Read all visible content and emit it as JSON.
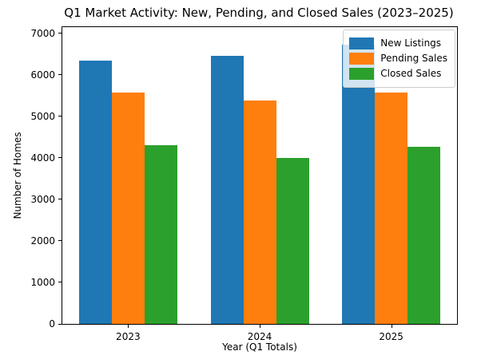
{
  "chart_data": {
    "type": "bar",
    "title": "Q1 Market Activity: New, Pending, and Closed Sales (2023–2025)",
    "xlabel": "Year (Q1 Totals)",
    "ylabel": "Number of Homes",
    "categories": [
      "2023",
      "2024",
      "2025"
    ],
    "series": [
      {
        "name": "New Listings",
        "color": "#1f77b4",
        "values": [
          6350,
          6460,
          6730
        ]
      },
      {
        "name": "Pending Sales",
        "color": "#ff7f0e",
        "values": [
          5580,
          5390,
          5580
        ]
      },
      {
        "name": "Closed Sales",
        "color": "#2ca02c",
        "values": [
          4310,
          4000,
          4270
        ]
      }
    ],
    "ylim": [
      0,
      7000
    ],
    "yticks": [
      0,
      1000,
      2000,
      3000,
      4000,
      5000,
      6000,
      7000
    ],
    "legend_position": "upper right",
    "grid": false
  }
}
